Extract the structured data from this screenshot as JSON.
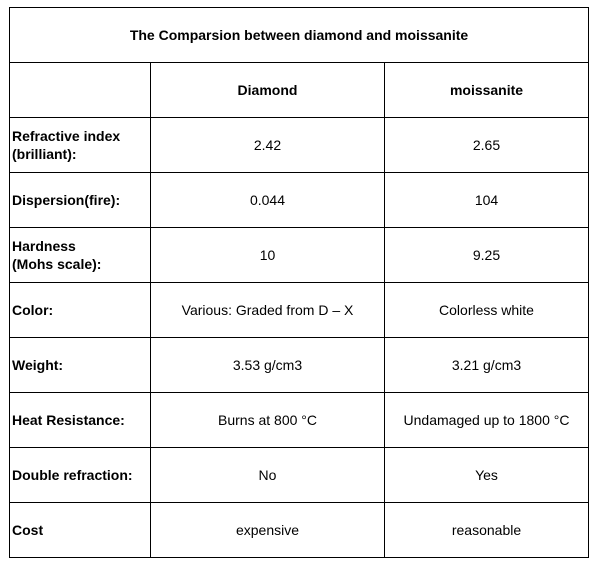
{
  "table": {
    "title": "The Comparsion between diamond and moissanite",
    "header": {
      "corner": "",
      "col1": "Diamond",
      "col2": "moissanite"
    },
    "rows": [
      {
        "label_line1": "Refractive index",
        "label_line2": "(brilliant):",
        "diamond": "2.42",
        "moissanite": "2.65"
      },
      {
        "label_line1": "Dispersion(fire):",
        "label_line2": "",
        "diamond": "0.044",
        "moissanite": "104"
      },
      {
        "label_line1": "Hardness",
        "label_line2": "(Mohs scale):",
        "diamond": "10",
        "moissanite": "9.25"
      },
      {
        "label_line1": "Color:",
        "label_line2": "",
        "diamond": "Various: Graded from D – X",
        "moissanite": "Colorless white"
      },
      {
        "label_line1": "Weight:",
        "label_line2": "",
        "diamond": "3.53 g/cm3",
        "moissanite": "3.21 g/cm3"
      },
      {
        "label_line1": "Heat Resistance:",
        "label_line2": "",
        "diamond": "Burns at 800 °C",
        "moissanite": "Undamaged up to 1800 °C"
      },
      {
        "label_line1": "Double refraction:",
        "label_line2": "",
        "diamond": "No",
        "moissanite": "Yes"
      },
      {
        "label_line1": "Cost",
        "label_line2": "",
        "diamond": "expensive",
        "moissanite": "reasonable"
      }
    ]
  }
}
